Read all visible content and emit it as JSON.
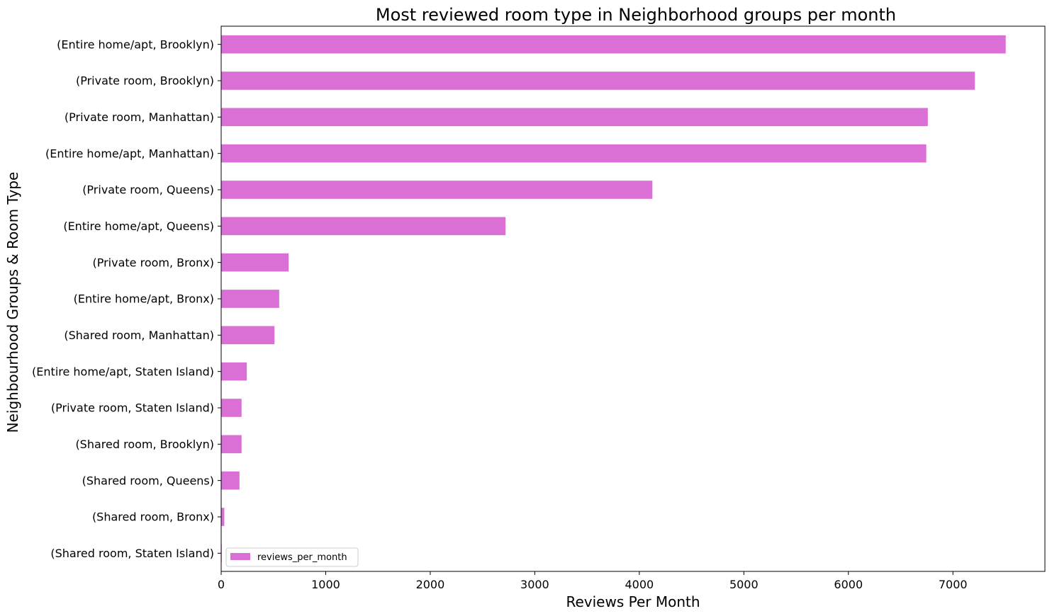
{
  "chart_data": {
    "type": "bar",
    "orientation": "horizontal",
    "title": "Most reviewed room type in Neighborhood groups per month",
    "xlabel": "Reviews Per Month",
    "ylabel": "Neighbourhood Groups & Room Type",
    "xlim": [
      0,
      7880
    ],
    "xticks": [
      0,
      1000,
      2000,
      3000,
      4000,
      5000,
      6000,
      7000
    ],
    "grid": false,
    "legend_position": "lower-left",
    "bar_color": "#da70d6",
    "categories": [
      "(Entire home/apt, Brooklyn)",
      "(Private room, Brooklyn)",
      "(Private room, Manhattan)",
      "(Entire home/apt, Manhattan)",
      "(Private room, Queens)",
      "(Entire home/apt, Queens)",
      "(Private room, Bronx)",
      "(Entire home/apt, Bronx)",
      "(Shared room, Manhattan)",
      "(Entire home/apt, Staten Island)",
      "(Private room, Staten Island)",
      "(Shared room, Brooklyn)",
      "(Shared room, Queens)",
      "(Shared room, Bronx)",
      "(Shared room, Staten Island)"
    ],
    "series": [
      {
        "name": "reviews_per_month",
        "values": [
          7505,
          7210,
          6760,
          6745,
          4125,
          2720,
          645,
          555,
          510,
          245,
          195,
          195,
          175,
          30,
          5
        ]
      }
    ]
  }
}
